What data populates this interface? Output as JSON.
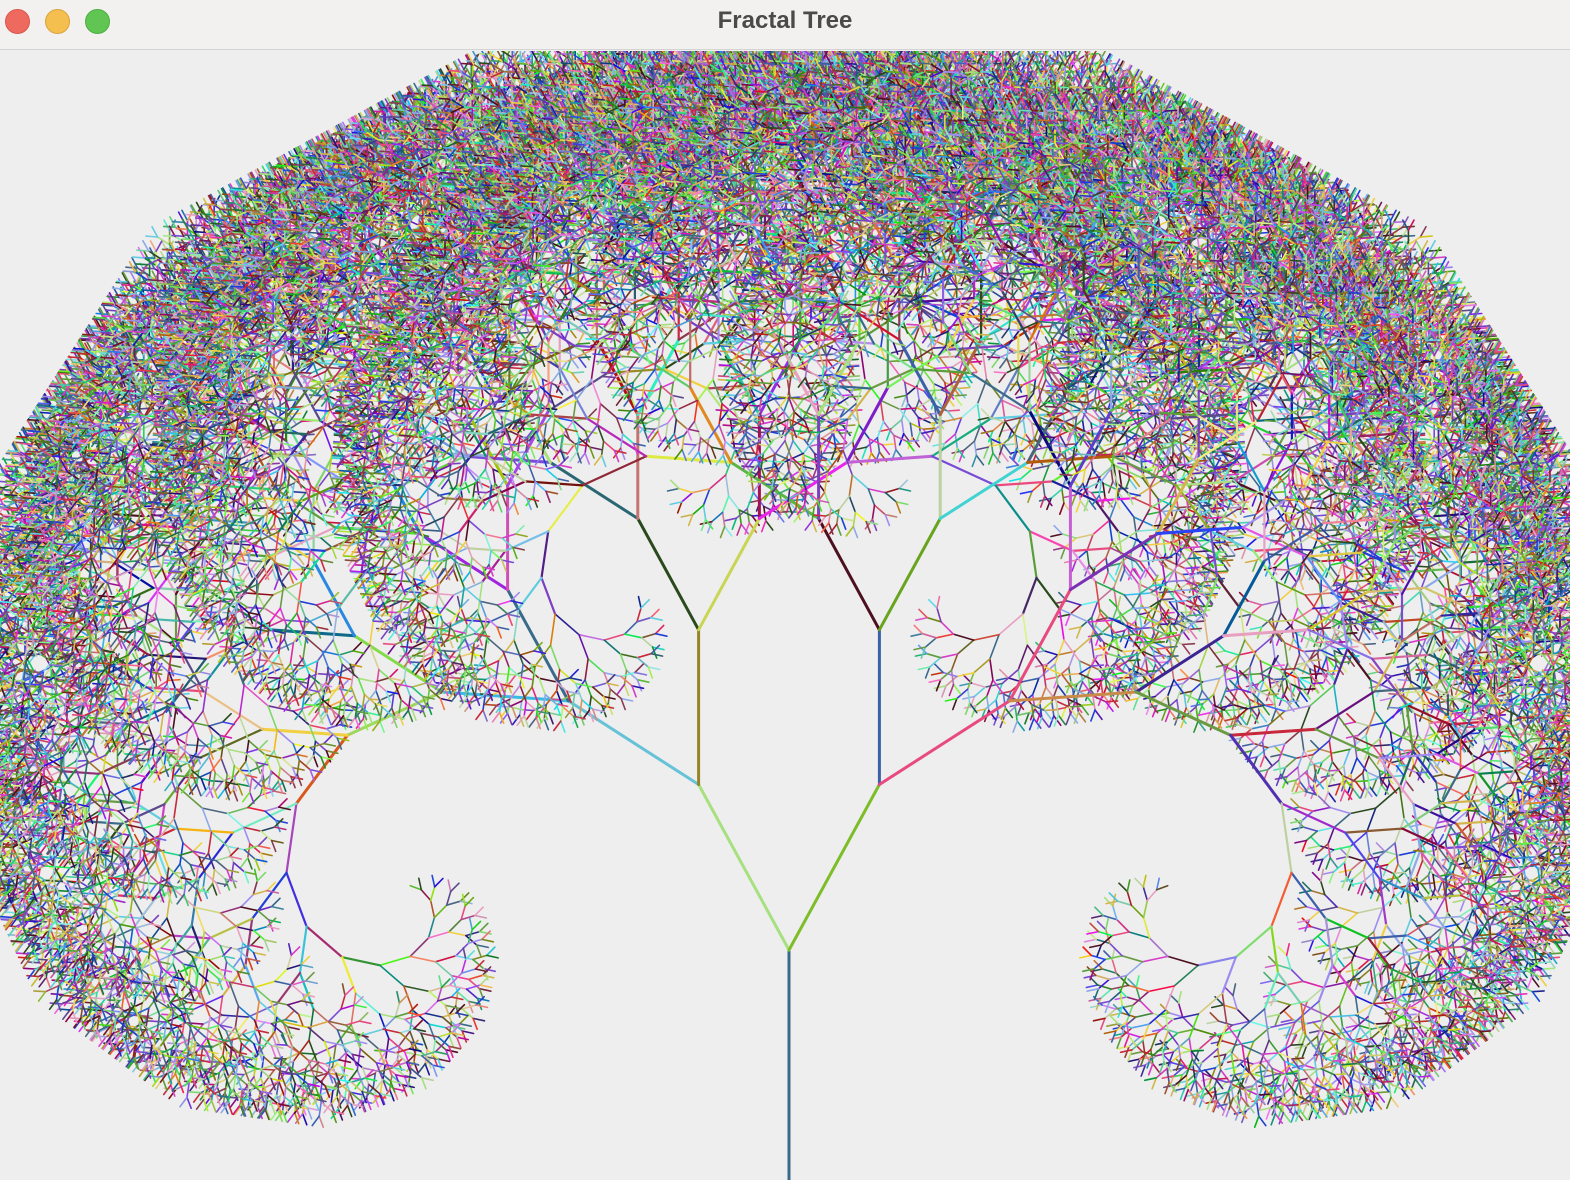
{
  "window": {
    "title": "Fractal Tree",
    "controls": {
      "close_icon": "close-icon",
      "minimize_icon": "minimize-icon",
      "zoom_icon": "zoom-icon"
    }
  },
  "canvas": {
    "background": "#eeeeee",
    "palette": [
      "#e84a7f",
      "#4b6580",
      "#d4b54a",
      "#1f3fd6",
      "#8a3b4f",
      "#a7e07e",
      "#7c3fc2",
      "#a08cf0",
      "#3b5fa8",
      "#5a4a8c",
      "#5fcde0",
      "#d63bc9",
      "#2a4a1e",
      "#5a9e3a",
      "#c8283b",
      "#4d1020",
      "#6a9a44",
      "#7a4bd4",
      "#7cd96a",
      "#8ea8e8",
      "#bcd0a0",
      "#e8a0c0",
      "#3a6a8a",
      "#f0d040"
    ]
  }
}
